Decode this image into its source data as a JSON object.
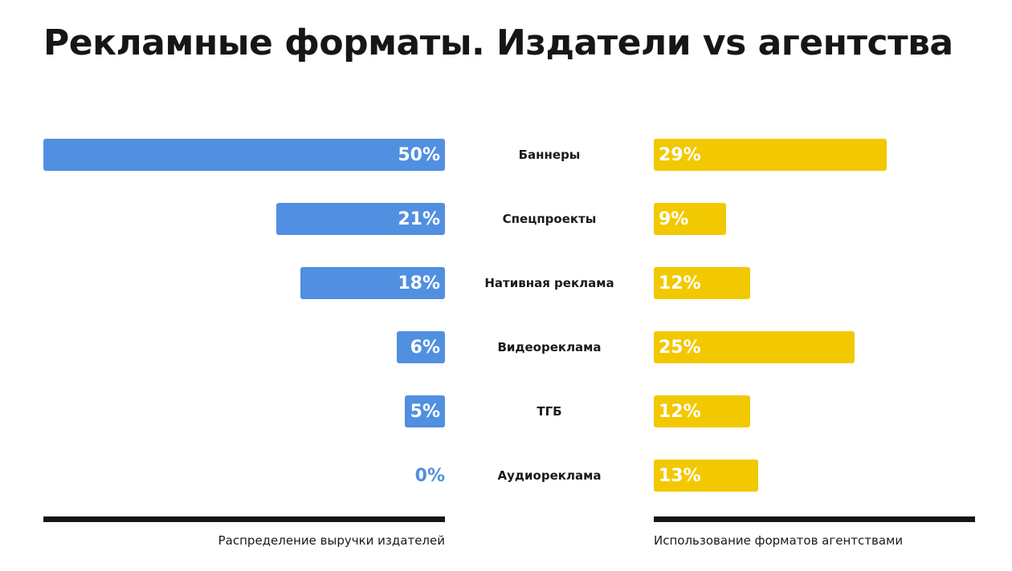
{
  "title": "Рекламные форматы. Издатели vs агентства",
  "colors": {
    "publishers": "#518fe0",
    "agencies": "#f2c800"
  },
  "chart_data": {
    "type": "bar",
    "layout": "butterfly",
    "categories": [
      "Баннеры",
      "Спецпроекты",
      "Нативная реклама",
      "Видеореклама",
      "ТГБ",
      "Аудиореклама"
    ],
    "series": [
      {
        "name": "Распределение выручки издателей",
        "values": [
          50,
          21,
          18,
          6,
          5,
          0
        ],
        "labels": [
          "50%",
          "21%",
          "18%",
          "6%",
          "5%",
          "0%"
        ]
      },
      {
        "name": "Использование форматов агентствами",
        "values": [
          29,
          9,
          12,
          25,
          12,
          13
        ],
        "labels": [
          "29%",
          "9%",
          "12%",
          "25%",
          "12%",
          "13%"
        ]
      }
    ],
    "unit": "%"
  }
}
